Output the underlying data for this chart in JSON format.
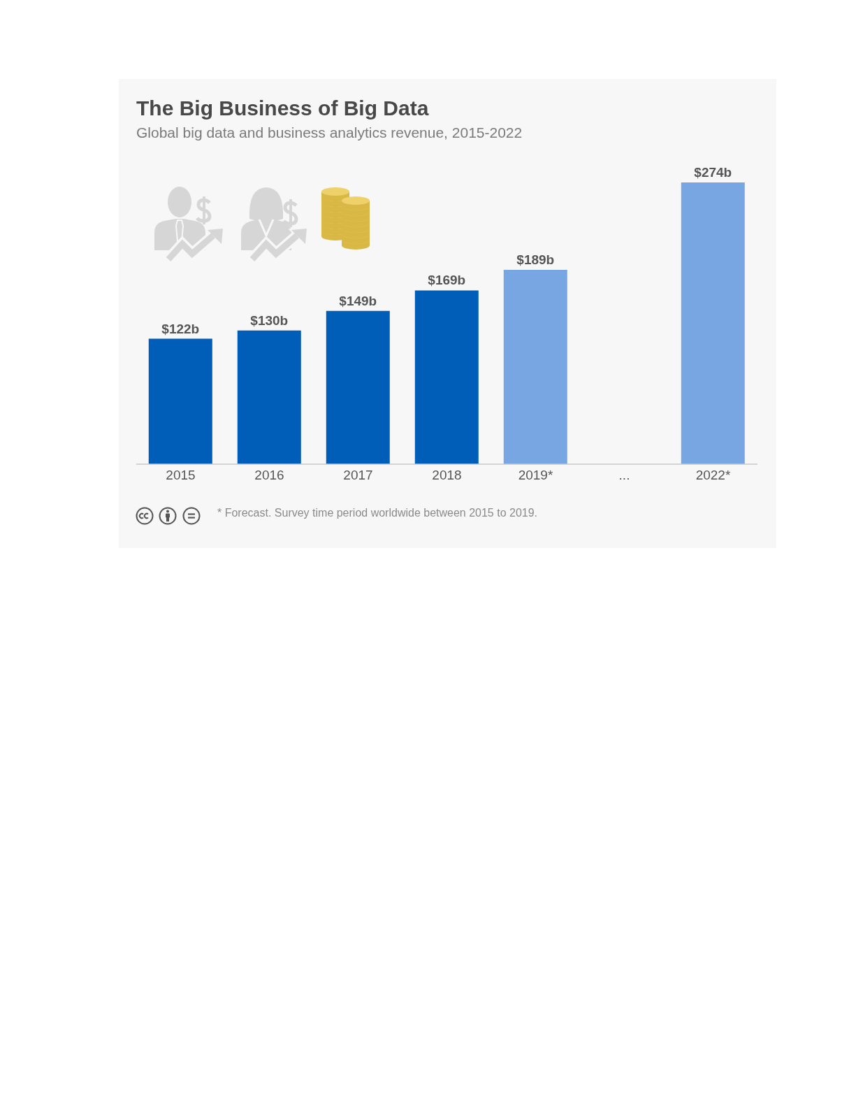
{
  "chart_data": {
    "type": "bar",
    "title": "The Big Business of Big Data",
    "subtitle": "Global big data and business analytics revenue, 2015-2022",
    "categories": [
      "2015",
      "2016",
      "2017",
      "2018",
      "2019*",
      "...",
      "2022*"
    ],
    "values": [
      122,
      130,
      149,
      169,
      189,
      null,
      274
    ],
    "colors": [
      "#005eb8",
      "#005eb8",
      "#005eb8",
      "#005eb8",
      "#77a6e2",
      null,
      "#77a6e2"
    ],
    "value_labels": [
      "$122b",
      "$130b",
      "$149b",
      "$169b",
      "$189b",
      null,
      "$274b"
    ],
    "tick_labels": "x",
    "annotations": [
      "* Forecast. Survey time period worldwide between 2015 to 2019."
    ]
  }
}
